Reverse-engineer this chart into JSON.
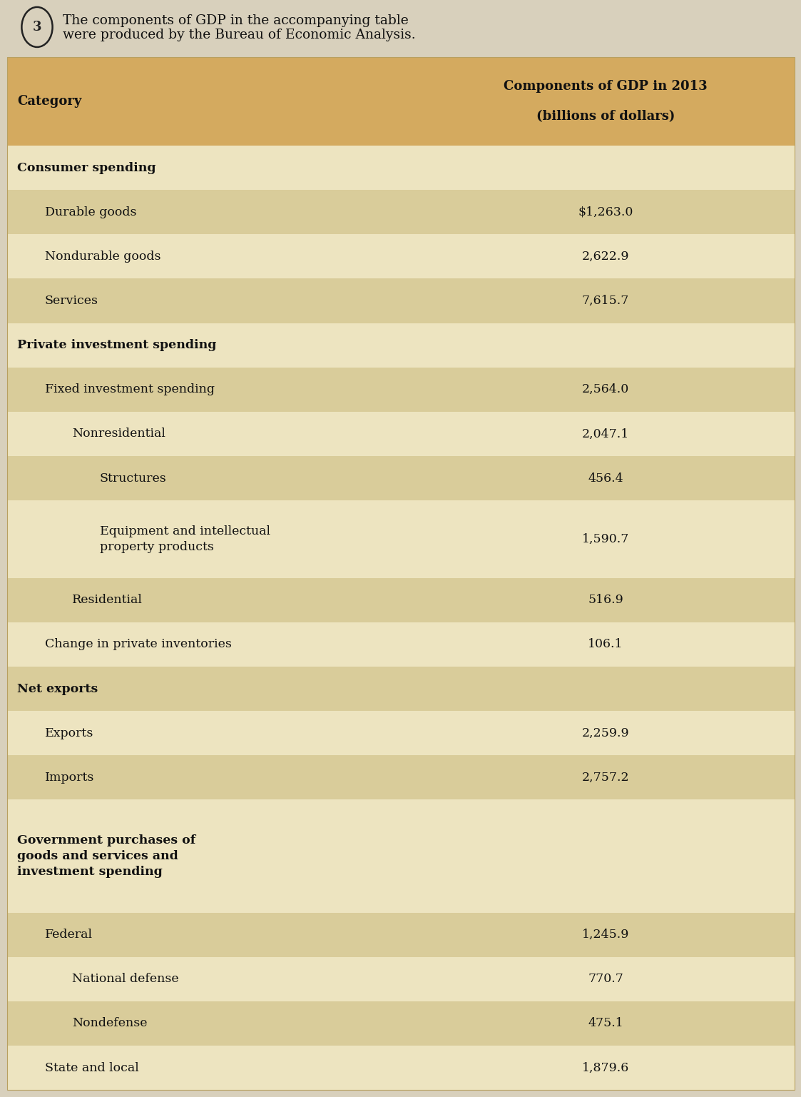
{
  "question_text_line1": "The components of GDP in the accompanying table",
  "question_text_line2": "were produced by the Bureau of Economic Analysis.",
  "question_number": "3",
  "col1_header": "Category",
  "col2_header_line1": "Components of GDP in 2013",
  "col2_header_line2": "(billions of dollars)",
  "header_bg": "#D4AA5F",
  "row_bg_light": "#EDE4C0",
  "row_bg_dark": "#D9CC9A",
  "page_bg": "#D8D0BC",
  "table_bg": "#EDE4C0",
  "fig_width": 12.0,
  "fig_height": 15.56,
  "rows": [
    {
      "label": "Consumer spending",
      "value": "",
      "indent": 0,
      "bold": true,
      "multiline": false
    },
    {
      "label": "Durable goods",
      "value": "$1,263.0",
      "indent": 1,
      "bold": false,
      "multiline": false
    },
    {
      "label": "Nondurable goods",
      "value": "2,622.9",
      "indent": 1,
      "bold": false,
      "multiline": false
    },
    {
      "label": "Services",
      "value": "7,615.7",
      "indent": 1,
      "bold": false,
      "multiline": false
    },
    {
      "label": "Private investment spending",
      "value": "",
      "indent": 0,
      "bold": true,
      "multiline": false
    },
    {
      "label": "Fixed investment spending",
      "value": "2,564.0",
      "indent": 1,
      "bold": false,
      "multiline": false
    },
    {
      "label": "Nonresidential",
      "value": "2,047.1",
      "indent": 2,
      "bold": false,
      "multiline": false
    },
    {
      "label": "Structures",
      "value": "456.4",
      "indent": 3,
      "bold": false,
      "multiline": false
    },
    {
      "label": "Equipment and intellectual\nproperty products",
      "value": "1,590.7",
      "indent": 3,
      "bold": false,
      "multiline": true
    },
    {
      "label": "Residential",
      "value": "516.9",
      "indent": 2,
      "bold": false,
      "multiline": false
    },
    {
      "label": "Change in private inventories",
      "value": "106.1",
      "indent": 1,
      "bold": false,
      "multiline": false
    },
    {
      "label": "Net exports",
      "value": "",
      "indent": 0,
      "bold": true,
      "multiline": false
    },
    {
      "label": "Exports",
      "value": "2,259.9",
      "indent": 1,
      "bold": false,
      "multiline": false
    },
    {
      "label": "Imports",
      "value": "2,757.2",
      "indent": 1,
      "bold": false,
      "multiline": false
    },
    {
      "label": "Government purchases of\ngoods and services and\ninvestment spending",
      "value": "",
      "indent": 0,
      "bold": true,
      "multiline": true
    },
    {
      "label": "Federal",
      "value": "1,245.9",
      "indent": 1,
      "bold": false,
      "multiline": false
    },
    {
      "label": "National defense",
      "value": "770.7",
      "indent": 2,
      "bold": false,
      "multiline": false
    },
    {
      "label": "Nondefense",
      "value": "475.1",
      "indent": 2,
      "bold": false,
      "multiline": false
    },
    {
      "label": "State and local",
      "value": "1,879.6",
      "indent": 1,
      "bold": false,
      "multiline": false
    }
  ]
}
